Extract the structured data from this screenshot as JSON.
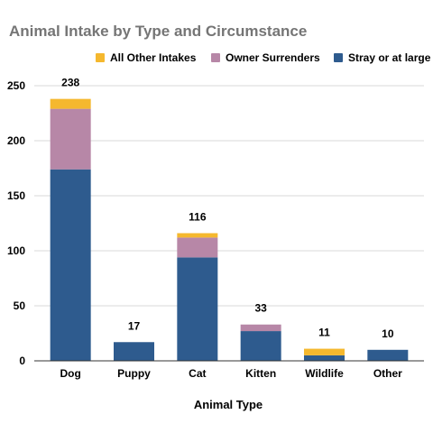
{
  "chart_data": {
    "type": "bar",
    "stacked": true,
    "title": "Animal Intake by Type and Circumstance",
    "xlabel": "Animal Type",
    "ylabel": "",
    "ylim": [
      0,
      250
    ],
    "yticks": [
      0,
      50,
      100,
      150,
      200,
      250
    ],
    "grid": true,
    "legend_position": "top",
    "categories": [
      "Dog",
      "Puppy",
      "Cat",
      "Kitten",
      "Wildlife",
      "Other"
    ],
    "series": [
      {
        "name": "Stray or at large",
        "color": "#2e5b8e",
        "values": [
          174,
          17,
          94,
          27,
          5,
          10
        ]
      },
      {
        "name": "Owner Surrenders",
        "color": "#b787a7",
        "values": [
          55,
          0,
          18,
          6,
          0,
          0
        ]
      },
      {
        "name": "All Other Intakes",
        "color": "#f5b82e",
        "values": [
          9,
          0,
          4,
          0,
          6,
          0
        ]
      }
    ],
    "totals": [
      "238",
      "17",
      "116",
      "33",
      "11",
      "10"
    ],
    "legend_order": [
      "All Other Intakes",
      "Owner Surrenders",
      "Stray or at large"
    ]
  }
}
